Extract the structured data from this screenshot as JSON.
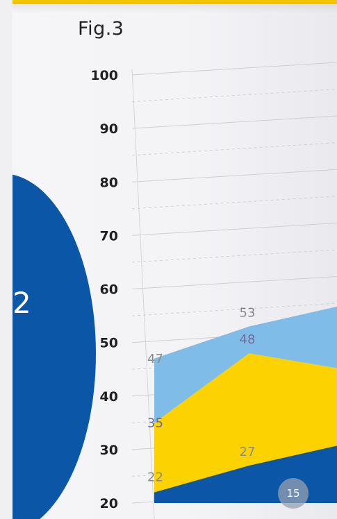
{
  "figure": {
    "title": "Fig.3",
    "page_number": "15",
    "circle_text": "2"
  },
  "colors": {
    "series_light_blue": "#7fbde8",
    "series_yellow": "#fcd200",
    "series_dark_blue": "#0b56a6",
    "label_gray": "#8a8a8a",
    "label_purple": "#6f6a9a"
  },
  "chart_data": {
    "type": "area",
    "title": "Fig.3",
    "xlabel": "",
    "ylabel": "",
    "ylim": [
      20,
      100
    ],
    "yticks": [
      100,
      90,
      80,
      70,
      60,
      50,
      40,
      30,
      20
    ],
    "grid": true,
    "x": [
      0,
      1,
      2
    ],
    "series": [
      {
        "values": [
          47,
          53,
          57
        ],
        "labels": [
          "47",
          "53",
          ""
        ]
      },
      {
        "values": [
          35,
          48,
          45
        ],
        "labels": [
          "35",
          "48",
          ""
        ]
      },
      {
        "values": [
          22,
          27,
          31
        ],
        "labels": [
          "22",
          "27",
          ""
        ]
      }
    ]
  }
}
